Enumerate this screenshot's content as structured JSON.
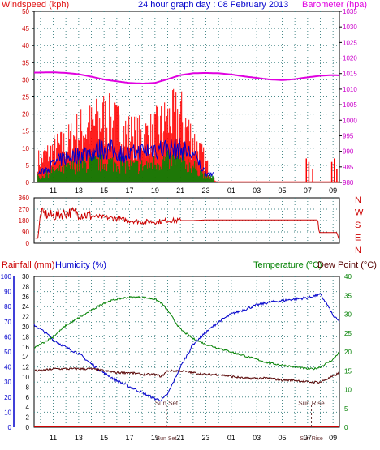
{
  "title": "24 hour graph day : 08 February 2013",
  "colors": {
    "wind": "#ff0000",
    "gust": "#0000cc",
    "avg": "#008000",
    "baro": "#e000e0",
    "dir": "#cc0000",
    "rain": "#cc0000",
    "humidity": "#0000cc",
    "temp": "#008000",
    "dew": "#550000",
    "axis_left": "#0000cc",
    "grid": "#4a8a8a"
  },
  "chart_data": [
    {
      "type": "line",
      "title": "24 hour graph day : 08 February 2013",
      "left_label": "Windspeed (kph)",
      "right_label": "Barometer (hpa)",
      "y_left_ticks": [
        "0",
        "5",
        "10",
        "15",
        "20",
        "25",
        "30",
        "35",
        "40",
        "45",
        "50"
      ],
      "y_left_range": [
        0,
        50
      ],
      "y_right_ticks": [
        "980",
        "985",
        "990",
        "995",
        "1000",
        "1005",
        "1010",
        "1015",
        "1020",
        "1025",
        "1030",
        "1035"
      ],
      "y_right_range": [
        980,
        1035
      ],
      "x_ticks": [
        "11",
        "13",
        "15",
        "17",
        "19",
        "21",
        "23",
        "01",
        "03",
        "05",
        "07",
        "09"
      ],
      "x_range": [
        9.5,
        33.5
      ],
      "grid": true,
      "series": [
        {
          "kind": "wind-bars-max",
          "x": [
            10,
            11,
            12,
            13,
            14,
            15,
            16,
            17,
            18,
            19,
            20,
            21,
            22,
            23,
            23.5,
            24,
            30.5,
            31,
            31.5,
            32,
            33,
            33.3
          ],
          "values": [
            9,
            13,
            15,
            20,
            22,
            25,
            22,
            19,
            18,
            20,
            24,
            26,
            17,
            8,
            2,
            0,
            0,
            5,
            7,
            3,
            6,
            4
          ]
        },
        {
          "kind": "wind-bars-gust",
          "x": [
            10,
            11,
            12,
            13,
            14,
            15,
            16,
            17,
            18,
            19,
            20,
            21,
            22,
            23
          ],
          "values": [
            3,
            6,
            8,
            9,
            10,
            11,
            10,
            9,
            10,
            11,
            11,
            11,
            9,
            3
          ]
        },
        {
          "kind": "wind-bars-avg",
          "x": [
            10,
            11,
            12,
            13,
            14,
            15,
            16,
            17,
            18,
            19,
            20,
            21,
            22,
            23
          ],
          "values": [
            2,
            4,
            5,
            6,
            7,
            7,
            7,
            6,
            6,
            7,
            8,
            8,
            6,
            2
          ]
        },
        {
          "kind": "barometer",
          "x": [
            9.5,
            11,
            12,
            13,
            14,
            15,
            16,
            17,
            18,
            19,
            20,
            21,
            22,
            23,
            24,
            25,
            26,
            27,
            28,
            29,
            30,
            31,
            32,
            33,
            33.5
          ],
          "values": [
            1015.3,
            1015.4,
            1015.2,
            1014.8,
            1014.0,
            1013.1,
            1012.5,
            1012.0,
            1011.8,
            1012.0,
            1013.2,
            1014.5,
            1015.1,
            1015.2,
            1015.1,
            1014.7,
            1014.1,
            1013.6,
            1013.1,
            1012.9,
            1013.2,
            1013.8,
            1014.3,
            1014.5,
            1014.4
          ]
        }
      ]
    },
    {
      "type": "line",
      "y_ticks": [
        "360",
        "270",
        "180",
        "90",
        "0"
      ],
      "y_range": [
        0,
        360
      ],
      "compass_labels": [
        "N",
        "W",
        "S",
        "E",
        "N"
      ],
      "x_range": [
        9.5,
        33.5
      ],
      "grid": true,
      "series": [
        {
          "name": "direction",
          "x": [
            9.6,
            9.8,
            10,
            10.5,
            11,
            11.5,
            12,
            12.5,
            13,
            13.5,
            14,
            15,
            16,
            17,
            18,
            19,
            20,
            21,
            22,
            23,
            24,
            31.8,
            31.9,
            33,
            33.3,
            33.5
          ],
          "values": [
            40,
            40,
            240,
            225,
            215,
            230,
            240,
            245,
            235,
            225,
            215,
            205,
            195,
            180,
            170,
            170,
            180,
            180,
            180,
            185,
            185,
            185,
            85,
            85,
            85,
            20
          ]
        }
      ]
    },
    {
      "type": "line",
      "labels": [
        "Rainfall (mm)",
        "Humidity (%)",
        "Temperature (°C)",
        "Dew Point (°C)"
      ],
      "y_left_ticks": [
        "0",
        "10",
        "20",
        "30",
        "40",
        "50",
        "60",
        "70",
        "80",
        "90",
        "100"
      ],
      "y_rain_ticks": [
        "0",
        "2",
        "4",
        "6",
        "8",
        "10",
        "12",
        "14",
        "16",
        "18",
        "20",
        "22",
        "24",
        "26",
        "28",
        "30"
      ],
      "y_right_ticks": [
        "0",
        "5",
        "10",
        "15",
        "20",
        "25",
        "30",
        "35",
        "40"
      ],
      "y_left_range": [
        0,
        100
      ],
      "y_right_range": [
        0,
        40
      ],
      "x_ticks": [
        "11",
        "13",
        "15",
        "17",
        "19",
        "21",
        "23",
        "01",
        "03",
        "05",
        "07",
        "09"
      ],
      "x_range": [
        9.5,
        33.5
      ],
      "grid": true,
      "annotations": [
        "Sun Set",
        "Sun Set",
        "Sun Rise",
        "Sun Rise"
      ],
      "annotation_x": [
        19.9,
        31.3
      ],
      "series": [
        {
          "name": "Humidity",
          "x": [
            9.5,
            10,
            10.5,
            11,
            12,
            13,
            14,
            15,
            16,
            17,
            18,
            19,
            19.5,
            20,
            21,
            22,
            23,
            24,
            25,
            26,
            27,
            28,
            29,
            30,
            31,
            32,
            32.5,
            33,
            33.5
          ],
          "values": [
            68,
            65,
            62,
            58,
            53,
            49,
            42,
            36,
            31,
            27,
            23,
            19,
            18,
            22,
            40,
            55,
            63,
            70,
            75,
            78,
            81,
            83,
            84,
            85,
            86,
            88,
            82,
            74,
            70
          ]
        },
        {
          "name": "Temperature",
          "x": [
            9.5,
            10,
            11,
            12,
            13,
            14,
            15,
            16,
            17,
            18,
            19,
            19.5,
            20,
            21,
            22,
            23,
            24,
            25,
            26,
            27,
            28,
            29,
            30,
            31,
            31.5,
            32,
            33,
            33.5
          ],
          "values": [
            21,
            22,
            24,
            27,
            29,
            31,
            33,
            34,
            34.5,
            34.5,
            34,
            33,
            31,
            26,
            23.5,
            22,
            21,
            20,
            19,
            18,
            17,
            16.5,
            16,
            15.5,
            15.5,
            16,
            18,
            20
          ]
        },
        {
          "name": "Dew Point",
          "x": [
            9.5,
            10,
            11,
            12,
            13,
            14,
            15,
            16,
            17,
            18,
            19,
            19.5,
            20,
            21,
            22,
            23,
            24,
            25,
            26,
            27,
            28,
            29,
            30,
            31,
            32,
            33,
            33.5
          ],
          "values": [
            15,
            15,
            15.5,
            15.5,
            15.5,
            15.5,
            15,
            14.5,
            14.5,
            14,
            14,
            13.5,
            15,
            15,
            14.5,
            14,
            14,
            13.5,
            13,
            13,
            13,
            12.5,
            12.5,
            12,
            12,
            13.5,
            14.5
          ]
        },
        {
          "name": "Rainfall",
          "x": [
            9.5,
            33.5
          ],
          "values": [
            0,
            0
          ]
        }
      ]
    }
  ]
}
